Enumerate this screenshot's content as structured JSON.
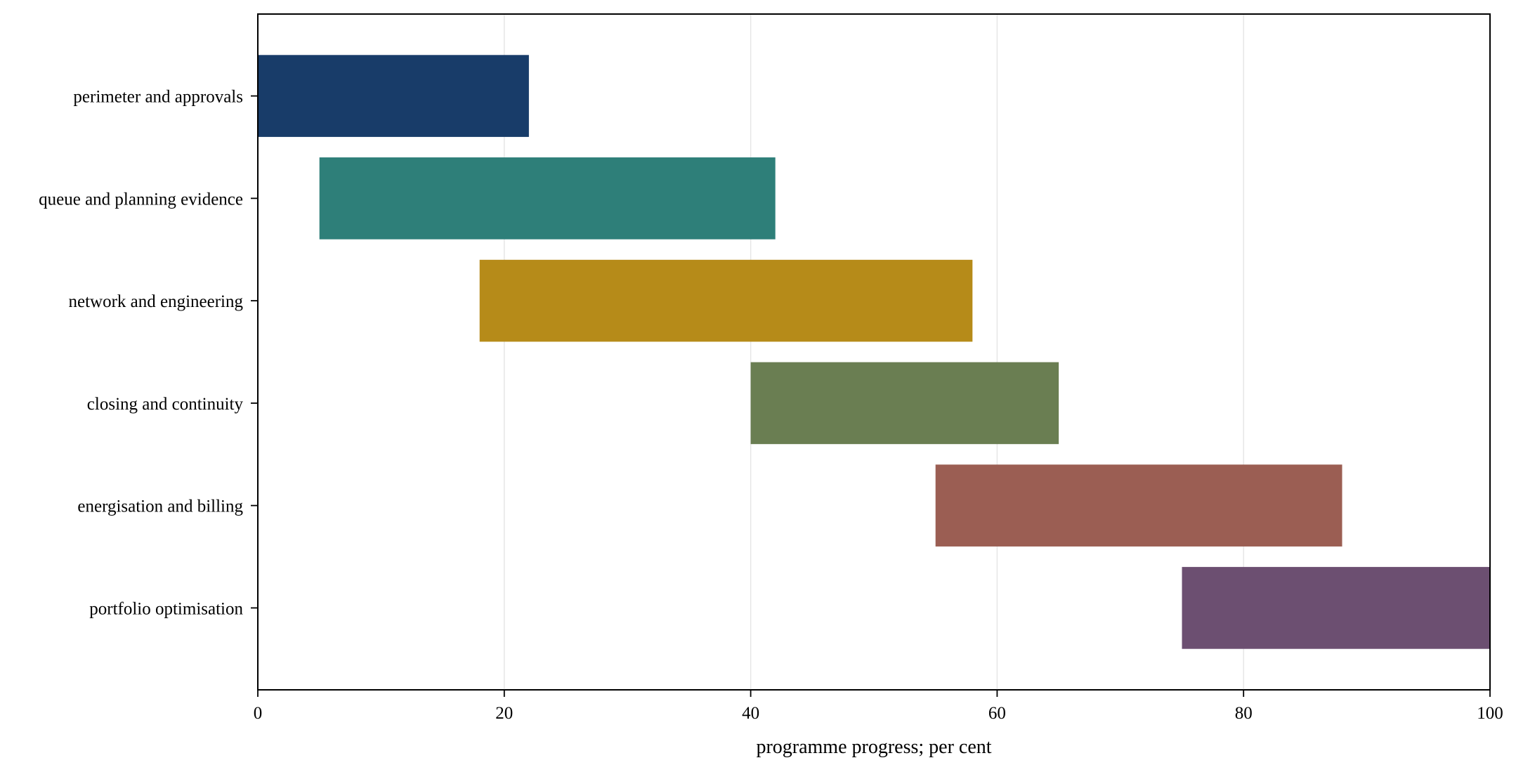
{
  "chart_data": {
    "type": "bar",
    "orientation": "horizontal",
    "style": "gantt",
    "categories": [
      "perimeter and approvals",
      "queue and planning evidence",
      "network and engineering",
      "closing and continuity",
      "energisation and billing",
      "portfolio optimisation"
    ],
    "starts": [
      0,
      5,
      18,
      40,
      55,
      75
    ],
    "ends": [
      22,
      42,
      58,
      65,
      88,
      100
    ],
    "colors": [
      "#183c69",
      "#2e7f79",
      "#b68b19",
      "#6a7e52",
      "#9b5e53",
      "#6c4f71"
    ],
    "xlabel": "programme progress; per cent",
    "ylabel": "",
    "xlim": [
      0,
      100
    ],
    "xticks": [
      0,
      20,
      40,
      60,
      80,
      100
    ],
    "xtick_labels": [
      "0",
      "20",
      "40",
      "60",
      "80",
      "100"
    ],
    "grid": "vertical",
    "legend": "none"
  }
}
